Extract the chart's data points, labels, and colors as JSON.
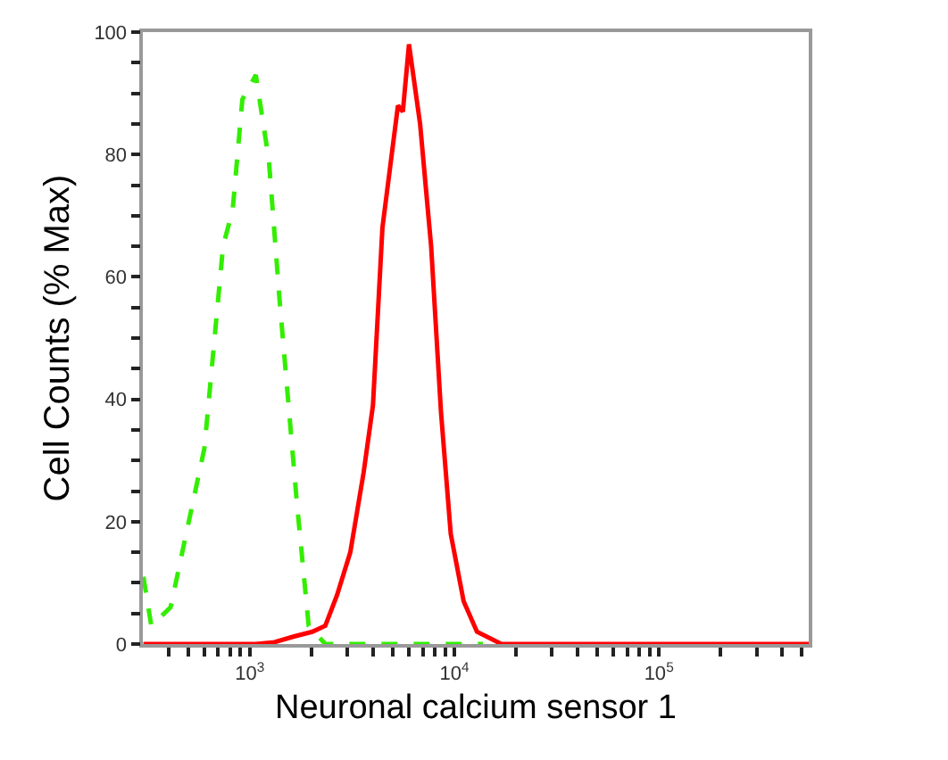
{
  "chart_data": {
    "type": "line",
    "xlabel": "Neuronal calcium sensor 1",
    "ylabel": "Cell Counts (% Max)",
    "log": "x",
    "xlim": [
      300,
      540000
    ],
    "ylim": [
      0,
      100
    ],
    "xticks": [
      {
        "value": 400,
        "label": null
      },
      {
        "value": 500,
        "label": null
      },
      {
        "value": 600,
        "label": null
      },
      {
        "value": 700,
        "label": null
      },
      {
        "value": 800,
        "label": null
      },
      {
        "value": 900,
        "label": null
      },
      {
        "value": 1000,
        "label": "10$^{3}$"
      },
      {
        "value": 2000,
        "label": null
      },
      {
        "value": 3000,
        "label": null
      },
      {
        "value": 4000,
        "label": null
      },
      {
        "value": 5000,
        "label": null
      },
      {
        "value": 6000,
        "label": null
      },
      {
        "value": 7000,
        "label": null
      },
      {
        "value": 8000,
        "label": null
      },
      {
        "value": 9000,
        "label": null
      },
      {
        "value": 10000,
        "label": "10$^{4}$"
      },
      {
        "value": 20000,
        "label": null
      },
      {
        "value": 30000,
        "label": null
      },
      {
        "value": 40000,
        "label": null
      },
      {
        "value": 50000,
        "label": null
      },
      {
        "value": 60000,
        "label": null
      },
      {
        "value": 70000,
        "label": null
      },
      {
        "value": 80000,
        "label": null
      },
      {
        "value": 90000,
        "label": null
      },
      {
        "value": 100000,
        "label": "10$^{5}$"
      },
      {
        "value": 200000,
        "label": null
      },
      {
        "value": 300000,
        "label": null
      },
      {
        "value": 400000,
        "label": null
      },
      {
        "value": 500000,
        "label": null
      }
    ],
    "yticks": [
      0,
      {
        "value": 5,
        "label": null
      },
      {
        "value": 10,
        "label": null
      },
      {
        "value": 15,
        "label": null
      },
      20,
      {
        "value": 25,
        "label": null
      },
      {
        "value": 30,
        "label": null
      },
      {
        "value": 35,
        "label": null
      },
      40,
      {
        "value": 45,
        "label": null
      },
      {
        "value": 50,
        "label": null
      },
      {
        "value": 55,
        "label": null
      },
      60,
      {
        "value": 65,
        "label": null
      },
      {
        "value": 70,
        "label": null
      },
      {
        "value": 75,
        "label": null
      },
      80,
      {
        "value": 85,
        "label": null
      },
      {
        "value": 90,
        "label": null
      },
      {
        "value": 95,
        "label": null
      },
      100
    ],
    "marker": "none",
    "series": [
      {
        "color": "#33ee00",
        "line_style": "dashed",
        "x": [
          302,
          330,
          410,
          600,
          740,
          825,
          920,
          1070,
          1240,
          1400,
          1700,
          1940,
          2340,
          13800
        ],
        "values": [
          11,
          3,
          6,
          32,
          65,
          71,
          89,
          93,
          79,
          56,
          23,
          3,
          0,
          0
        ]
      },
      {
        "color": "#ff0000",
        "line_style": "solid",
        "x": [
          302,
          1070,
          1320,
          1630,
          2020,
          2340,
          2670,
          3100,
          3600,
          4000,
          4450,
          5300,
          5600,
          6000,
          6800,
          7700,
          8600,
          9600,
          11100,
          12900,
          17000,
          540000
        ],
        "values": [
          0,
          0,
          0.3,
          1.2,
          2,
          3,
          8,
          15,
          28,
          39,
          68,
          88,
          87,
          98,
          85,
          65,
          38,
          18,
          7,
          2,
          0,
          0
        ]
      }
    ]
  }
}
